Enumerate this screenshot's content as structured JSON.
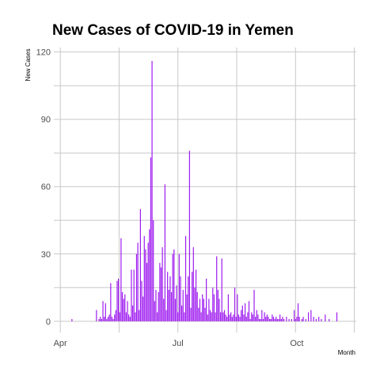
{
  "chart_data": {
    "type": "bar",
    "title": "New Cases of COVID-19 in Yemen",
    "xlabel": "Month",
    "ylabel": "New  Cases",
    "x_tick_labels": [
      "Apr",
      "Jul",
      "Oct"
    ],
    "x_ticks": [
      "2020-04-01",
      "2020-07-01",
      "2020-10-01"
    ],
    "y_ticks": [
      0,
      30,
      60,
      90,
      120
    ],
    "ylim": [
      -5,
      122
    ],
    "xlim": [
      "2020-03-27",
      "2020-11-16"
    ],
    "bar_color": "#a020f0",
    "grid": true,
    "series": [
      {
        "x": [
          "2020-04-10",
          "2020-04-29",
          "2020-05-01",
          "2020-05-02",
          "2020-05-03",
          "2020-05-04",
          "2020-05-05",
          "2020-05-06",
          "2020-05-07",
          "2020-05-08",
          "2020-05-09",
          "2020-05-10",
          "2020-05-11",
          "2020-05-12",
          "2020-05-13",
          "2020-05-14",
          "2020-05-15",
          "2020-05-16",
          "2020-05-17",
          "2020-05-18",
          "2020-05-19",
          "2020-05-20",
          "2020-05-21",
          "2020-05-22",
          "2020-05-23",
          "2020-05-24",
          "2020-05-25",
          "2020-05-26",
          "2020-05-27",
          "2020-05-28",
          "2020-05-29",
          "2020-05-30",
          "2020-05-31",
          "2020-06-01",
          "2020-06-02",
          "2020-06-03",
          "2020-06-04",
          "2020-06-05",
          "2020-06-06",
          "2020-06-07",
          "2020-06-08",
          "2020-06-09",
          "2020-06-10",
          "2020-06-11",
          "2020-06-12",
          "2020-06-13",
          "2020-06-14",
          "2020-06-15",
          "2020-06-16",
          "2020-06-17",
          "2020-06-18",
          "2020-06-19",
          "2020-06-20",
          "2020-06-21",
          "2020-06-22",
          "2020-06-23",
          "2020-06-24",
          "2020-06-25",
          "2020-06-26",
          "2020-06-27",
          "2020-06-28",
          "2020-06-29",
          "2020-06-30",
          "2020-07-01",
          "2020-07-02",
          "2020-07-03",
          "2020-07-04",
          "2020-07-05",
          "2020-07-06",
          "2020-07-07",
          "2020-07-08",
          "2020-07-09",
          "2020-07-10",
          "2020-07-11",
          "2020-07-12",
          "2020-07-13",
          "2020-07-14",
          "2020-07-15",
          "2020-07-16",
          "2020-07-17",
          "2020-07-18",
          "2020-07-19",
          "2020-07-20",
          "2020-07-21",
          "2020-07-22",
          "2020-07-23",
          "2020-07-24",
          "2020-07-25",
          "2020-07-26",
          "2020-07-27",
          "2020-07-28",
          "2020-07-29",
          "2020-07-30",
          "2020-07-31",
          "2020-08-01",
          "2020-08-02",
          "2020-08-03",
          "2020-08-04",
          "2020-08-05",
          "2020-08-06",
          "2020-08-07",
          "2020-08-08",
          "2020-08-09",
          "2020-08-10",
          "2020-08-11",
          "2020-08-12",
          "2020-08-13",
          "2020-08-14",
          "2020-08-15",
          "2020-08-16",
          "2020-08-17",
          "2020-08-18",
          "2020-08-19",
          "2020-08-20",
          "2020-08-21",
          "2020-08-22",
          "2020-08-23",
          "2020-08-24",
          "2020-08-25",
          "2020-08-26",
          "2020-08-27",
          "2020-08-28",
          "2020-08-29",
          "2020-08-30",
          "2020-08-31",
          "2020-09-01",
          "2020-09-02",
          "2020-09-03",
          "2020-09-04",
          "2020-09-05",
          "2020-09-06",
          "2020-09-07",
          "2020-09-08",
          "2020-09-09",
          "2020-09-10",
          "2020-09-11",
          "2020-09-12",
          "2020-09-13",
          "2020-09-14",
          "2020-09-15",
          "2020-09-16",
          "2020-09-17",
          "2020-09-18",
          "2020-09-19",
          "2020-09-20",
          "2020-09-21",
          "2020-09-23",
          "2020-09-25",
          "2020-09-27",
          "2020-09-29",
          "2020-09-30",
          "2020-10-01",
          "2020-10-02",
          "2020-10-03",
          "2020-10-05",
          "2020-10-06",
          "2020-10-08",
          "2020-10-10",
          "2020-10-12",
          "2020-10-14",
          "2020-10-16",
          "2020-10-18",
          "2020-10-20",
          "2020-10-23",
          "2020-10-26",
          "2020-11-01"
        ],
        "values": [
          1,
          5,
          1,
          2,
          1,
          9,
          2,
          8,
          1,
          2,
          3,
          17,
          2,
          1,
          3,
          5,
          18,
          19,
          4,
          37,
          13,
          10,
          12,
          4,
          9,
          3,
          2,
          23,
          7,
          23,
          4,
          30,
          35,
          5,
          50,
          18,
          11,
          38,
          32,
          26,
          35,
          41,
          73,
          116,
          45,
          9,
          14,
          4,
          13,
          26,
          24,
          33,
          10,
          61,
          5,
          22,
          14,
          20,
          13,
          30,
          32,
          10,
          16,
          4,
          30,
          20,
          7,
          14,
          4,
          38,
          12,
          20,
          76,
          6,
          22,
          33,
          15,
          23,
          13,
          6,
          10,
          4,
          12,
          10,
          6,
          19,
          3,
          10,
          5,
          4,
          15,
          12,
          4,
          29,
          14,
          10,
          4,
          28,
          4,
          5,
          3,
          2,
          12,
          3,
          4,
          2,
          3,
          15,
          2,
          12,
          3,
          2,
          5,
          7,
          3,
          8,
          2,
          4,
          9,
          1,
          4,
          3,
          14,
          2,
          5,
          3,
          1,
          1,
          5,
          1,
          4,
          2,
          3,
          2,
          1,
          1,
          3,
          2,
          1,
          2,
          1,
          1,
          3,
          1,
          2,
          1,
          2,
          1,
          1,
          5,
          1,
          2,
          8,
          2,
          1,
          2,
          1,
          4,
          5,
          2,
          1,
          2,
          1,
          3,
          1,
          4
        ]
      }
    ]
  }
}
